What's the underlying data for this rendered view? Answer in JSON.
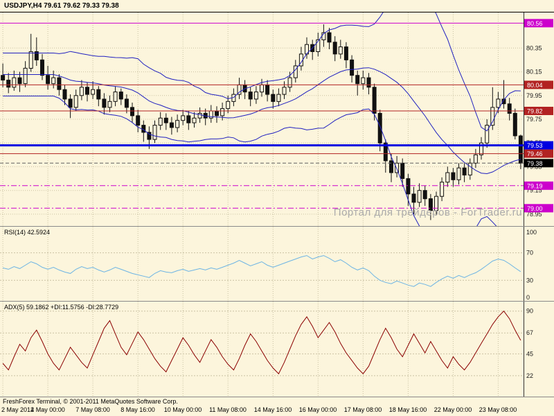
{
  "window": {
    "title": "USDJPY,H4  79.61 79.62 79.33 79.38",
    "watermark": "Портал для трейдеров - ForTrader.ru",
    "copyright": "FreshForex Terminal, © 2001-2011 MetaQuotes Software Corp."
  },
  "colors": {
    "background": "#FCF5DC",
    "grid": "#C9C2A2",
    "candle": "#111111",
    "bollinger": "#2020C0",
    "axis_text": "#1a1a1a",
    "separator": "#8a8a8a",
    "watermark": "#ABABAB"
  },
  "chart_data": [
    {
      "type": "candlestick",
      "symbol": "USDJPY",
      "timeframe": "H4",
      "last_bar": {
        "open": 79.61,
        "high": 79.62,
        "low": 79.33,
        "close": 79.38
      },
      "y_range": [
        78.85,
        80.65
      ],
      "y_ticks": [
        80.35,
        80.15,
        79.95,
        79.75,
        79.55,
        79.35,
        79.15,
        78.95
      ],
      "x_labels": [
        "2 May 2012",
        "4 May 00:00",
        "7 May 08:00",
        "8 May 16:00",
        "10 May 00:00",
        "11 May 08:00",
        "14 May 16:00",
        "16 May 00:00",
        "17 May 08:00",
        "18 May 16:00",
        "22 May 00:00",
        "23 May 08:00"
      ],
      "x_label_indices": [
        0,
        8,
        16,
        24,
        32,
        40,
        48,
        56,
        64,
        72,
        80,
        88
      ],
      "bollinger": {
        "period": 20,
        "deviation": 2
      },
      "hlines": [
        {
          "price": 80.56,
          "label": "80.56",
          "color": "#CC00CC",
          "style": "solid",
          "width": 1
        },
        {
          "price": 80.04,
          "label": "80.04",
          "color": "#B22222",
          "style": "solid",
          "width": 1
        },
        {
          "price": 79.82,
          "label": "79.82",
          "color": "#B22222",
          "style": "solid",
          "width": 1
        },
        {
          "price": 79.53,
          "label": "79.53",
          "color": "#0000E0",
          "style": "solid",
          "width": 3
        },
        {
          "price": 79.46,
          "label": "79.46",
          "color": "#B22222",
          "style": "solid",
          "width": 1
        },
        {
          "price": 79.38,
          "label": "79.38",
          "color": "#606060",
          "box": "#000000",
          "style": "dash",
          "width": 1
        },
        {
          "price": 79.19,
          "label": "79.19",
          "color": "#CC00CC",
          "style": "dashdot",
          "width": 1
        },
        {
          "price": 79.0,
          "label": "79.00",
          "color": "#CC00CC",
          "style": "dashdot",
          "width": 1
        }
      ],
      "candles": [
        [
          80.12,
          80.22,
          80.02,
          80.08
        ],
        [
          80.08,
          80.14,
          79.97,
          80.02
        ],
        [
          80.02,
          80.16,
          79.99,
          80.1
        ],
        [
          80.1,
          80.15,
          79.98,
          80.05
        ],
        [
          80.05,
          80.24,
          80.02,
          80.18
        ],
        [
          80.18,
          80.47,
          80.15,
          80.32
        ],
        [
          80.32,
          80.44,
          80.2,
          80.25
        ],
        [
          80.25,
          80.3,
          80.08,
          80.12
        ],
        [
          80.12,
          80.2,
          80.0,
          80.05
        ],
        [
          80.05,
          80.16,
          80.01,
          80.1
        ],
        [
          80.1,
          80.13,
          79.95,
          80.0
        ],
        [
          80.0,
          80.04,
          79.87,
          79.92
        ],
        [
          79.92,
          79.96,
          79.76,
          79.85
        ],
        [
          79.85,
          80.0,
          79.82,
          79.95
        ],
        [
          79.95,
          80.08,
          79.91,
          80.02
        ],
        [
          80.02,
          80.06,
          79.9,
          79.96
        ],
        [
          79.96,
          80.07,
          79.92,
          80.0
        ],
        [
          80.0,
          80.03,
          79.86,
          79.92
        ],
        [
          79.92,
          79.97,
          79.79,
          79.85
        ],
        [
          79.85,
          79.95,
          79.81,
          79.9
        ],
        [
          79.9,
          80.03,
          79.86,
          79.98
        ],
        [
          79.98,
          80.01,
          79.87,
          79.92
        ],
        [
          79.92,
          79.96,
          79.8,
          79.85
        ],
        [
          79.85,
          79.89,
          79.72,
          79.78
        ],
        [
          79.78,
          79.83,
          79.64,
          79.7
        ],
        [
          79.7,
          79.74,
          79.56,
          79.64
        ],
        [
          79.64,
          79.69,
          79.5,
          79.58
        ],
        [
          79.58,
          79.74,
          79.55,
          79.7
        ],
        [
          79.7,
          79.81,
          79.66,
          79.76
        ],
        [
          79.76,
          79.8,
          79.66,
          79.72
        ],
        [
          79.72,
          79.77,
          79.62,
          79.68
        ],
        [
          79.68,
          79.79,
          79.64,
          79.74
        ],
        [
          79.74,
          79.83,
          79.7,
          79.78
        ],
        [
          79.78,
          79.82,
          79.66,
          79.72
        ],
        [
          79.72,
          79.81,
          79.68,
          79.76
        ],
        [
          79.76,
          79.85,
          79.72,
          79.8
        ],
        [
          79.8,
          79.84,
          79.7,
          79.76
        ],
        [
          79.76,
          79.87,
          79.72,
          79.82
        ],
        [
          79.82,
          79.86,
          79.72,
          79.78
        ],
        [
          79.78,
          79.89,
          79.74,
          79.84
        ],
        [
          79.84,
          79.95,
          79.8,
          79.9
        ],
        [
          79.9,
          80.01,
          79.86,
          79.96
        ],
        [
          79.96,
          80.1,
          79.92,
          80.04
        ],
        [
          80.04,
          80.08,
          79.92,
          79.98
        ],
        [
          79.98,
          80.02,
          79.86,
          79.92
        ],
        [
          79.92,
          80.03,
          79.88,
          79.98
        ],
        [
          79.98,
          80.09,
          79.94,
          80.04
        ],
        [
          80.04,
          80.08,
          79.9,
          79.96
        ],
        [
          79.96,
          80.0,
          79.84,
          79.9
        ],
        [
          79.9,
          80.01,
          79.86,
          79.96
        ],
        [
          79.96,
          80.07,
          79.92,
          80.02
        ],
        [
          80.02,
          80.15,
          79.98,
          80.1
        ],
        [
          80.1,
          80.25,
          80.06,
          80.2
        ],
        [
          80.2,
          80.36,
          80.16,
          80.3
        ],
        [
          80.3,
          80.44,
          80.26,
          80.38
        ],
        [
          80.38,
          80.42,
          80.25,
          80.32
        ],
        [
          80.32,
          80.48,
          80.28,
          80.42
        ],
        [
          80.42,
          80.55,
          80.36,
          80.48
        ],
        [
          80.48,
          80.52,
          80.34,
          80.4
        ],
        [
          80.4,
          80.45,
          80.24,
          80.3
        ],
        [
          80.3,
          80.42,
          80.26,
          80.36
        ],
        [
          80.36,
          80.4,
          80.18,
          80.25
        ],
        [
          80.25,
          80.29,
          80.06,
          80.12
        ],
        [
          80.12,
          80.16,
          79.95,
          80.05
        ],
        [
          80.05,
          80.16,
          80.0,
          80.1
        ],
        [
          80.1,
          80.14,
          79.96,
          80.02
        ],
        [
          80.02,
          80.05,
          79.74,
          79.8
        ],
        [
          79.8,
          79.83,
          79.48,
          79.55
        ],
        [
          79.55,
          79.58,
          79.3,
          79.4
        ],
        [
          79.4,
          79.46,
          79.22,
          79.3
        ],
        [
          79.3,
          79.44,
          79.26,
          79.38
        ],
        [
          79.38,
          79.42,
          79.18,
          79.25
        ],
        [
          79.25,
          79.29,
          79.02,
          79.12
        ],
        [
          79.12,
          79.18,
          78.95,
          79.05
        ],
        [
          79.05,
          79.21,
          79.01,
          79.15
        ],
        [
          79.15,
          79.19,
          79.02,
          79.08
        ],
        [
          79.08,
          79.12,
          78.9,
          78.98
        ],
        [
          78.98,
          79.14,
          78.94,
          79.1
        ],
        [
          79.1,
          79.26,
          79.06,
          79.22
        ],
        [
          79.22,
          79.35,
          79.18,
          79.3
        ],
        [
          79.3,
          79.34,
          79.18,
          79.24
        ],
        [
          79.24,
          79.38,
          79.2,
          79.34
        ],
        [
          79.34,
          79.38,
          79.22,
          79.28
        ],
        [
          79.28,
          79.42,
          79.24,
          79.38
        ],
        [
          79.38,
          79.5,
          79.34,
          79.45
        ],
        [
          79.45,
          79.6,
          79.41,
          79.55
        ],
        [
          79.55,
          79.75,
          79.51,
          79.7
        ],
        [
          79.7,
          80.02,
          79.66,
          79.85
        ],
        [
          79.85,
          79.98,
          79.8,
          79.92
        ],
        [
          79.92,
          80.08,
          79.84,
          79.88
        ],
        [
          79.88,
          79.93,
          79.74,
          79.8
        ],
        [
          79.8,
          79.84,
          79.58,
          79.61
        ],
        [
          79.61,
          79.62,
          79.33,
          79.38
        ]
      ]
    },
    {
      "type": "line",
      "name": "RSI(14)",
      "label": "RSI(14) 42.5924",
      "current_value": 42.5924,
      "color": "#6CB4E4",
      "y_range": [
        0,
        108
      ],
      "y_ticks": [
        100,
        70,
        30,
        0
      ],
      "levels": [
        70,
        30
      ],
      "values": [
        48,
        46,
        50,
        47,
        52,
        57,
        54,
        49,
        46,
        49,
        45,
        42,
        40,
        46,
        50,
        47,
        49,
        45,
        42,
        45,
        49,
        46,
        43,
        40,
        38,
        36,
        34,
        40,
        44,
        42,
        41,
        44,
        46,
        43,
        45,
        47,
        45,
        48,
        46,
        49,
        52,
        55,
        59,
        55,
        51,
        54,
        57,
        52,
        49,
        52,
        55,
        58,
        61,
        64,
        66,
        61,
        64,
        66,
        62,
        57,
        60,
        55,
        49,
        45,
        48,
        44,
        36,
        30,
        27,
        25,
        29,
        26,
        23,
        21,
        26,
        24,
        21,
        27,
        32,
        36,
        33,
        37,
        34,
        38,
        41,
        46,
        52,
        58,
        61,
        59,
        54,
        48,
        42.59
      ]
    },
    {
      "type": "line",
      "name": "ADX(5)",
      "label": "ADX(5) 59.1862 +DI:11.5756 -DI:28.7729",
      "current_value": 59.1862,
      "plus_di": 11.5756,
      "minus_di": 28.7729,
      "color": "#8B0000",
      "y_range": [
        0,
        100
      ],
      "y_ticks": [
        90,
        67,
        45,
        22
      ],
      "levels": [
        90,
        67,
        45,
        22
      ],
      "values": [
        35,
        28,
        42,
        55,
        48,
        62,
        70,
        58,
        45,
        35,
        28,
        40,
        52,
        44,
        36,
        30,
        44,
        58,
        72,
        80,
        66,
        52,
        44,
        56,
        68,
        60,
        50,
        40,
        32,
        26,
        38,
        50,
        62,
        54,
        44,
        36,
        48,
        60,
        52,
        42,
        34,
        28,
        40,
        54,
        66,
        58,
        48,
        38,
        30,
        24,
        36,
        50,
        64,
        76,
        84,
        74,
        62,
        70,
        78,
        68,
        56,
        46,
        38,
        30,
        24,
        32,
        46,
        60,
        72,
        62,
        50,
        42,
        54,
        66,
        56,
        46,
        58,
        48,
        38,
        30,
        42,
        34,
        28,
        36,
        46,
        56,
        66,
        76,
        84,
        90,
        82,
        70,
        59.19
      ]
    }
  ]
}
